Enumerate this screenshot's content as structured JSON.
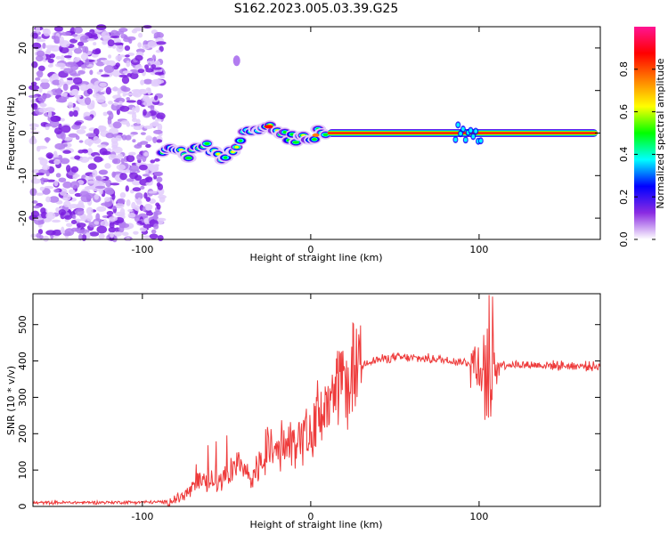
{
  "title": "S162.2023.005.03.39.G25",
  "colors": {
    "snr_line": "#ee3b3b",
    "spectrum_noise": "#8a2be2",
    "background": "#ffffff"
  },
  "chart_data": [
    {
      "type": "heatmap",
      "name": "spectrogram",
      "xlabel": "Height of straight line (km)",
      "ylabel": "Frequency (Hz)",
      "xlim": [
        -165,
        172
      ],
      "ylim": [
        -25,
        25
      ],
      "xticks": [
        -100,
        0,
        100
      ],
      "xtick_labels": [
        "-100",
        "0",
        "100"
      ],
      "yticks": [
        -20,
        -10,
        0,
        10,
        20
      ],
      "ytick_labels": [
        "-20",
        "-10",
        "0",
        "10",
        "20"
      ],
      "colorbar": {
        "label": "Normalized spectral amplitude",
        "range": [
          0.0,
          1.0
        ],
        "ticks": [
          0.0,
          0.2,
          0.4,
          0.6,
          0.8
        ],
        "tick_labels": [
          "0.0",
          "0.2",
          "0.4",
          "0.6",
          "0.8"
        ],
        "colormap": [
          "#ffffff",
          "#8a2be2",
          "#0000ff",
          "#00ffff",
          "#00ff00",
          "#ffff00",
          "#ff8000",
          "#ff0000",
          "#ff1493"
        ]
      },
      "noise_region_x": [
        -165,
        -88
      ],
      "dominant_ridge": [
        {
          "x": -88,
          "y": -5
        },
        {
          "x": -80,
          "y": -4
        },
        {
          "x": -72,
          "y": -5
        },
        {
          "x": -62,
          "y": -3
        },
        {
          "x": -52,
          "y": -6
        },
        {
          "x": -45,
          "y": -3
        },
        {
          "x": -38,
          "y": 0
        },
        {
          "x": -30,
          "y": 1.5
        },
        {
          "x": -22,
          "y": 1
        },
        {
          "x": -15,
          "y": -1
        },
        {
          "x": -8,
          "y": -1.5
        },
        {
          "x": 0,
          "y": -1
        },
        {
          "x": 5,
          "y": 0
        },
        {
          "x": 10,
          "y": 0
        },
        {
          "x": 90,
          "y": 0
        },
        {
          "x": 95,
          "y": 0.5
        },
        {
          "x": 100,
          "y": 0
        },
        {
          "x": 172,
          "y": 0
        }
      ],
      "grid": false
    },
    {
      "type": "line",
      "name": "snr",
      "xlabel": "Height of straight line (km)",
      "ylabel": "SNR (10 * v/v)",
      "xlim": [
        -165,
        172
      ],
      "ylim": [
        0,
        585
      ],
      "xticks": [
        -100,
        0,
        100
      ],
      "xtick_labels": [
        "-100",
        "0",
        "100"
      ],
      "yticks": [
        0,
        100,
        200,
        300,
        400,
        500
      ],
      "ytick_labels": [
        "0",
        "100",
        "200",
        "300",
        "400",
        "500"
      ],
      "trend": [
        {
          "x": -165,
          "y": 10
        },
        {
          "x": -85,
          "y": 12
        },
        {
          "x": -75,
          "y": 30
        },
        {
          "x": -65,
          "y": 70
        },
        {
          "x": -55,
          "y": 60
        },
        {
          "x": -45,
          "y": 110
        },
        {
          "x": -35,
          "y": 80
        },
        {
          "x": -25,
          "y": 150
        },
        {
          "x": -15,
          "y": 160
        },
        {
          "x": -5,
          "y": 190
        },
        {
          "x": 5,
          "y": 240
        },
        {
          "x": 15,
          "y": 300
        },
        {
          "x": 25,
          "y": 370
        },
        {
          "x": 35,
          "y": 400
        },
        {
          "x": 50,
          "y": 410
        },
        {
          "x": 75,
          "y": 405
        },
        {
          "x": 95,
          "y": 395
        },
        {
          "x": 120,
          "y": 390
        },
        {
          "x": 172,
          "y": 385
        }
      ],
      "grid": false
    }
  ]
}
